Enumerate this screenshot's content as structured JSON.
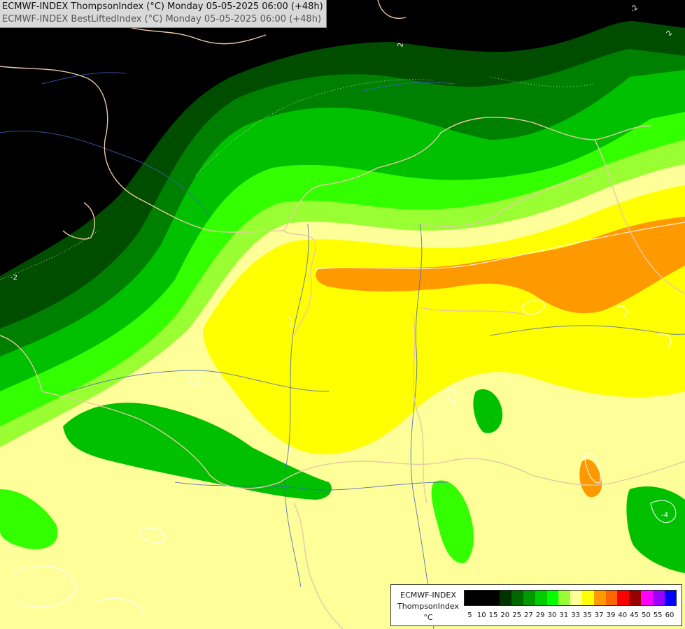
{
  "header": {
    "line1": "ECMWF-INDEX ThompsonIndex (°C) Monday 05-05-2025 06:00 (+48h)",
    "line2": "ECMWF-INDEX BestLiftedIndex (°C) Monday 05-05-2025 06:00 (+48h)"
  },
  "legend": {
    "title": "ECMWF-INDEX",
    "subtitle": "ThompsonIndex",
    "unit": "°C",
    "classes": [
      {
        "value": "5",
        "color": "#000000"
      },
      {
        "value": "10",
        "color": "#000000"
      },
      {
        "value": "15",
        "color": "#000000"
      },
      {
        "value": "20",
        "color": "#003300"
      },
      {
        "value": "25",
        "color": "#006600"
      },
      {
        "value": "27",
        "color": "#009900"
      },
      {
        "value": "29",
        "color": "#00cc00"
      },
      {
        "value": "30",
        "color": "#00ff00"
      },
      {
        "value": "31",
        "color": "#99ff33"
      },
      {
        "value": "33",
        "color": "#ffff99"
      },
      {
        "value": "35",
        "color": "#ffff00"
      },
      {
        "value": "37",
        "color": "#ff9900"
      },
      {
        "value": "39",
        "color": "#ff6600"
      },
      {
        "value": "40",
        "color": "#ff0000"
      },
      {
        "value": "45",
        "color": "#990000"
      },
      {
        "value": "50",
        "color": "#ff00ff"
      },
      {
        "value": "55",
        "color": "#9900ff"
      },
      {
        "value": "60",
        "color": "#0000ff"
      }
    ]
  },
  "map": {
    "region_colors": {
      "background": "#000000",
      "dark_green": "#004d00",
      "mid_green": "#008000",
      "green": "#00c000",
      "bright_green": "#33ff00",
      "light_green": "#99ff33",
      "pale_yellow": "#ffff99",
      "yellow": "#ffff00",
      "orange": "#ff9900",
      "border_line": "#e8c8a8",
      "river_line": "#4060c0",
      "contour_line": "#ffffff"
    },
    "contour_labels": [
      "2",
      "2",
      "-2",
      "-4",
      "-2"
    ]
  }
}
